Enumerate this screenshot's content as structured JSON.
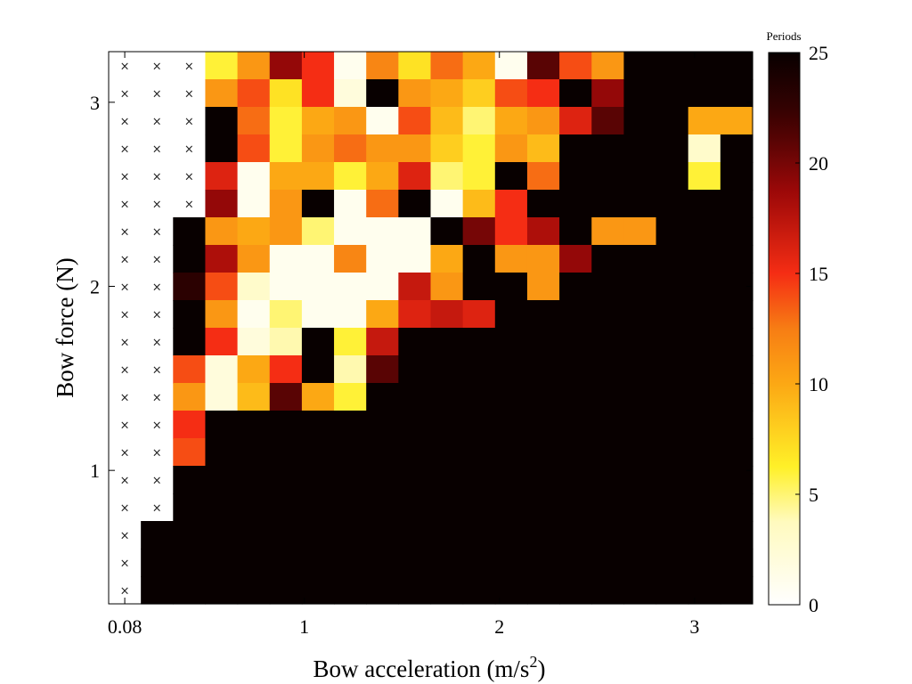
{
  "chart_data": {
    "type": "heatmap",
    "xlabel": "Bow acceleration (m/s",
    "xlabel_sup": "2",
    "xlabel_end": ")",
    "ylabel": "Bow force (N)",
    "x_ticks": [
      {
        "label": "0.08",
        "value": 0.08
      },
      {
        "label": "1",
        "value": 1
      },
      {
        "label": "2",
        "value": 2
      },
      {
        "label": "3",
        "value": 3
      }
    ],
    "y_ticks": [
      {
        "label": "1",
        "value": 1
      },
      {
        "label": "2",
        "value": 2
      },
      {
        "label": "3",
        "value": 3
      }
    ],
    "x_values": [
      0.08,
      0.245,
      0.41,
      0.575,
      0.74,
      0.905,
      1.07,
      1.235,
      1.4,
      1.565,
      1.73,
      1.895,
      2.06,
      2.225,
      2.39,
      2.555,
      2.72,
      2.885,
      3.05,
      3.215
    ],
    "y_values": [
      3.2,
      3.05,
      2.9,
      2.75,
      2.6,
      2.45,
      2.3,
      2.15,
      2.0,
      1.85,
      1.7,
      1.55,
      1.4,
      1.25,
      1.1,
      0.95,
      0.8,
      0.65,
      0.5,
      0.35
    ],
    "colorbar": {
      "label": "Periods",
      "min": 0,
      "max": 25,
      "ticks": [
        0,
        5,
        10,
        15,
        20,
        25
      ]
    },
    "no_data_marker": "×",
    "periods": [
      [
        null,
        null,
        null,
        6,
        11,
        19,
        15,
        1,
        12,
        7,
        13,
        10,
        1,
        21,
        14,
        11,
        25,
        25,
        25,
        25
      ],
      [
        null,
        null,
        null,
        11,
        14,
        7,
        15,
        2,
        25,
        11,
        10,
        8,
        14,
        15,
        25,
        19,
        25,
        25,
        25,
        25
      ],
      [
        null,
        null,
        null,
        25,
        13,
        6,
        10,
        11,
        1,
        14,
        9,
        5,
        10,
        11,
        16,
        21,
        25,
        25,
        10,
        10
      ],
      [
        null,
        null,
        null,
        25,
        14,
        6,
        11,
        13,
        11,
        11,
        8,
        6,
        11,
        9,
        25,
        25,
        25,
        25,
        3,
        25
      ],
      [
        null,
        null,
        null,
        16,
        1,
        10,
        10,
        6,
        10,
        16,
        5,
        6,
        25,
        13,
        25,
        25,
        25,
        25,
        6,
        25
      ],
      [
        null,
        null,
        null,
        19,
        1,
        11,
        25,
        1,
        13,
        25,
        1,
        9,
        15,
        25,
        25,
        25,
        25,
        25,
        25,
        25
      ],
      [
        null,
        null,
        25,
        11,
        10,
        11,
        5,
        1,
        1,
        1,
        25,
        20,
        15,
        18,
        25,
        11,
        11,
        25,
        25,
        25
      ],
      [
        null,
        null,
        25,
        18,
        11,
        1,
        1,
        12,
        1,
        1,
        10,
        25,
        11,
        11,
        19,
        25,
        25,
        25,
        25,
        25
      ],
      [
        null,
        null,
        23,
        14,
        3,
        1,
        1,
        1,
        1,
        17,
        11,
        25,
        25,
        11,
        25,
        25,
        25,
        25,
        25,
        25
      ],
      [
        null,
        null,
        25,
        11,
        1,
        5,
        1,
        1,
        10,
        16,
        17,
        16,
        25,
        25,
        25,
        25,
        25,
        25,
        25,
        25
      ],
      [
        null,
        null,
        25,
        15,
        2,
        4,
        25,
        6,
        17,
        25,
        25,
        25,
        25,
        25,
        25,
        25,
        25,
        25,
        25,
        25
      ],
      [
        null,
        null,
        14,
        2,
        10,
        15,
        25,
        4,
        21,
        25,
        25,
        25,
        25,
        25,
        25,
        25,
        25,
        25,
        25,
        25
      ],
      [
        null,
        null,
        11,
        2,
        9,
        21,
        10,
        6,
        25,
        25,
        25,
        25,
        25,
        25,
        25,
        25,
        25,
        25,
        25,
        25
      ],
      [
        null,
        null,
        15,
        25,
        25,
        25,
        25,
        25,
        25,
        25,
        25,
        25,
        25,
        25,
        25,
        25,
        25,
        25,
        25,
        25
      ],
      [
        null,
        null,
        14,
        25,
        25,
        25,
        25,
        25,
        25,
        25,
        25,
        25,
        25,
        25,
        25,
        25,
        25,
        25,
        25,
        25
      ],
      [
        null,
        null,
        25,
        25,
        25,
        25,
        25,
        25,
        25,
        25,
        25,
        25,
        25,
        25,
        25,
        25,
        25,
        25,
        25,
        25
      ],
      [
        null,
        null,
        25,
        25,
        25,
        25,
        25,
        25,
        25,
        25,
        25,
        25,
        25,
        25,
        25,
        25,
        25,
        25,
        25,
        25
      ],
      [
        null,
        25,
        25,
        25,
        25,
        25,
        25,
        25,
        25,
        25,
        25,
        25,
        25,
        25,
        25,
        25,
        25,
        25,
        25,
        25
      ],
      [
        null,
        25,
        25,
        25,
        25,
        25,
        25,
        25,
        25,
        25,
        25,
        25,
        25,
        25,
        25,
        25,
        25,
        25,
        25,
        25
      ],
      [
        null,
        25,
        25,
        25,
        25,
        25,
        25,
        25,
        25,
        25,
        25,
        25,
        25,
        25,
        25,
        25,
        25,
        25,
        25,
        25
      ]
    ]
  }
}
